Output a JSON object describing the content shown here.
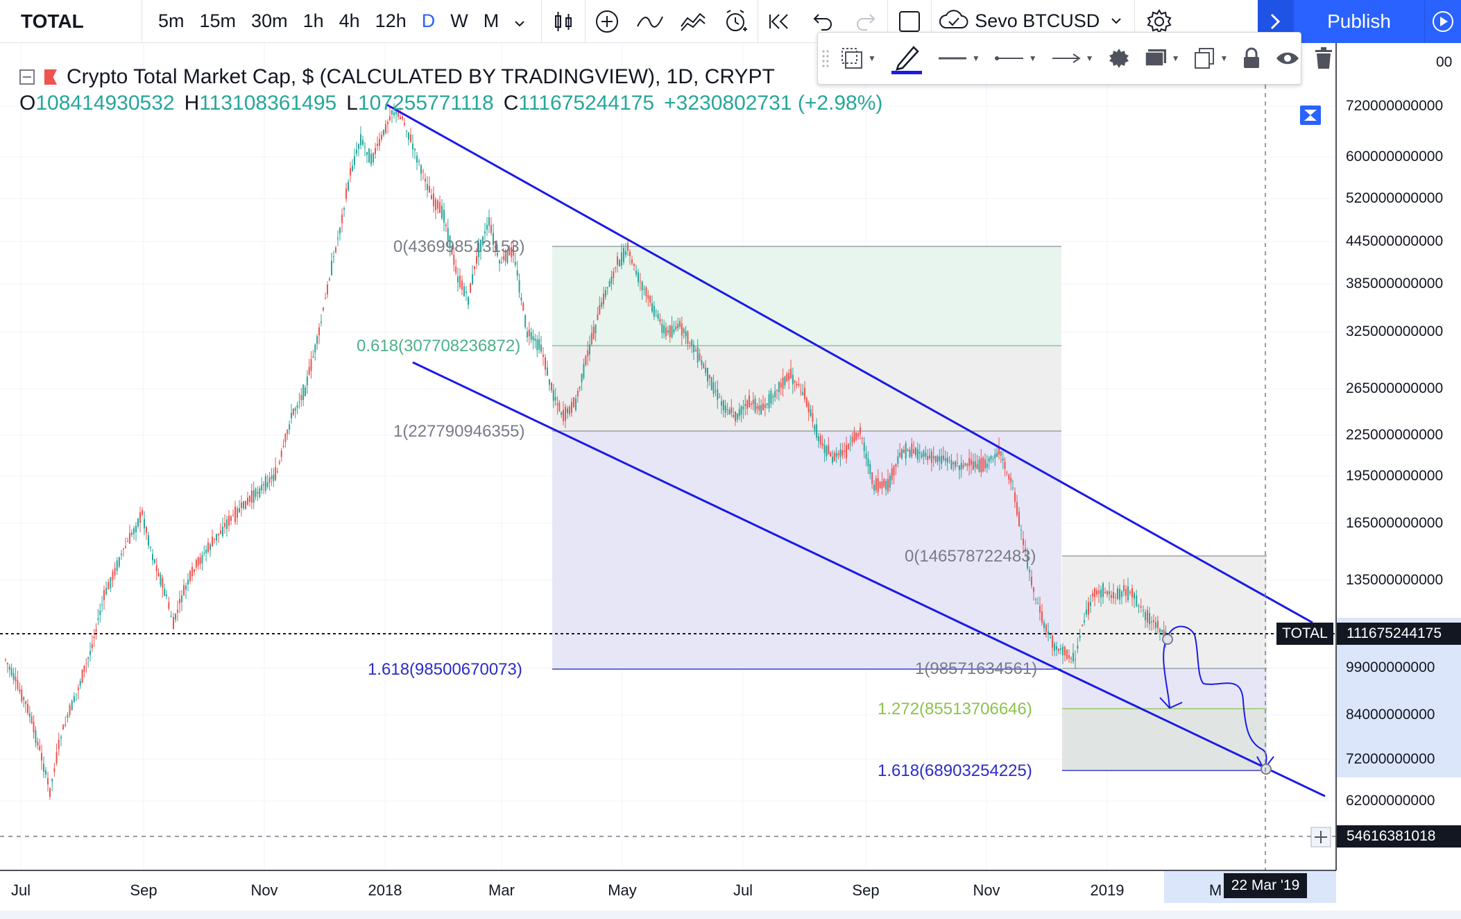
{
  "toolbar": {
    "symbol": "TOTAL",
    "intervals": [
      "5m",
      "15m",
      "30m",
      "1h",
      "4h",
      "12h",
      "D",
      "W",
      "M"
    ],
    "active_interval": "D",
    "compare_label": "Sevo BTCUSD",
    "publish_label": "Publish",
    "icons": [
      "candles-icon",
      "add-indicator-icon",
      "indicator-icon",
      "templates-icon",
      "alert-icon",
      "replay-icon",
      "undo-icon",
      "redo-icon",
      "layout-icon",
      "cloud-save-icon",
      "settings-icon",
      "fullscreen-icon"
    ]
  },
  "legend": {
    "title": "Crypto Total Market Cap, $ (CALCULATED BY TRADINGVIEW), 1D, CRYPT",
    "open_key": "O",
    "open": "108414930532",
    "high_key": "H",
    "high": "113108361495",
    "low_key": "L",
    "low": "107255771118",
    "close_key": "C",
    "close": "111675244175",
    "change": "+3230802731 (+2.98%)"
  },
  "price_axis": {
    "labels": [
      "720000000000",
      "600000000000",
      "520000000000",
      "445000000000",
      "385000000000",
      "325000000000",
      "265000000000",
      "225000000000",
      "195000000000",
      "165000000000",
      "135000000000",
      "99000000000",
      "84000000000",
      "72000000000",
      "62000000000"
    ],
    "partial_top": "00",
    "current_symbol": "TOTAL",
    "current_price": "111675244175",
    "crosshair_price": "54616381018"
  },
  "time_axis": {
    "labels": [
      "Jul",
      "Sep",
      "Nov",
      "2018",
      "Mar",
      "May",
      "Jul",
      "Sep",
      "Nov",
      "2019",
      "M"
    ],
    "crosshair_date": "22 Mar '19"
  },
  "fib_levels": {
    "upper": [
      {
        "label": "0(436998513153)",
        "color": "#787b86"
      },
      {
        "label": "0.618(307708236872)",
        "color": "#4caf8a"
      },
      {
        "label": "1(227790946355)",
        "color": "#787b86"
      },
      {
        "label": "1.618(98500670073)",
        "color": "#2b2bc8"
      }
    ],
    "lower": [
      {
        "label": "0(146578722483)",
        "color": "#787b86"
      },
      {
        "label": "1(98571634561)",
        "color": "#787b86"
      },
      {
        "label": "1.272(85513706646)",
        "color": "#8bc34a"
      },
      {
        "label": "1.618(68903254225)",
        "color": "#2b2bc8"
      }
    ]
  },
  "colors": {
    "up": "#26a69a",
    "down": "#ef5350",
    "channel": "#1a1ae6",
    "accent": "#2962ff"
  }
}
